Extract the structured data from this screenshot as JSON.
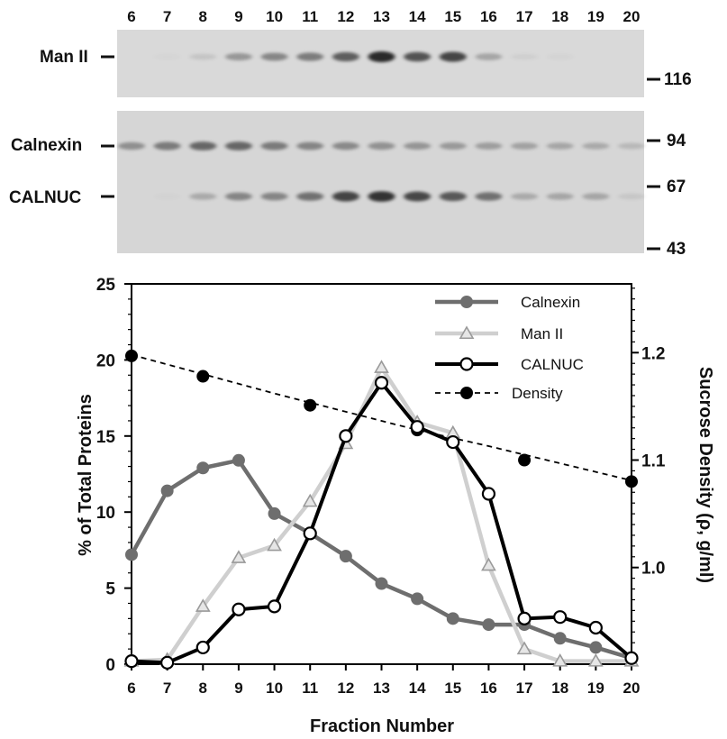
{
  "blot": {
    "lane_labels": [
      "6",
      "7",
      "8",
      "9",
      "10",
      "11",
      "12",
      "13",
      "14",
      "15",
      "16",
      "17",
      "18",
      "19",
      "20"
    ],
    "panel1": {
      "row_labels": [
        "Man II"
      ],
      "marker_labels": [
        "116"
      ],
      "bands": [
        {
          "name": "Man II",
          "intensity": [
            0.0,
            0.02,
            0.1,
            0.32,
            0.4,
            0.45,
            0.6,
            0.85,
            0.65,
            0.72,
            0.25,
            0.05,
            0.03,
            0.0,
            0.0
          ]
        }
      ]
    },
    "panel2": {
      "row_labels": [
        "Calnexin",
        "CALNUC"
      ],
      "marker_labels": [
        "94",
        "67",
        "43"
      ],
      "bands": [
        {
          "name": "Calnexin",
          "intensity": [
            0.35,
            0.45,
            0.55,
            0.55,
            0.45,
            0.4,
            0.38,
            0.34,
            0.32,
            0.3,
            0.28,
            0.26,
            0.24,
            0.22,
            0.15
          ]
        },
        {
          "name": "CALNUC",
          "intensity": [
            0.0,
            0.02,
            0.22,
            0.4,
            0.4,
            0.5,
            0.72,
            0.8,
            0.7,
            0.62,
            0.5,
            0.22,
            0.24,
            0.24,
            0.08
          ]
        }
      ]
    }
  },
  "chart_data": {
    "type": "line",
    "xlabel": "Fraction Number",
    "ylabel": "% of Total Proteins",
    "y2label": "Sucrose Density (ρ, g/ml)",
    "x": [
      6,
      7,
      8,
      9,
      10,
      11,
      12,
      13,
      14,
      15,
      16,
      17,
      18,
      19,
      20
    ],
    "xlim": [
      6,
      20
    ],
    "ylim": [
      0,
      25
    ],
    "y2lim": [
      0.91,
      1.264
    ],
    "yticks": [
      0,
      5,
      10,
      15,
      20,
      25
    ],
    "y2ticks": [
      1.0,
      1.1,
      1.2
    ],
    "y2ticklabels": [
      "1.0",
      "1.1",
      "1.2"
    ],
    "legend_position": "top-right",
    "series": [
      {
        "name": "Calnexin",
        "axis": "left",
        "marker": "filled-circle",
        "color": "#6e6e6e",
        "x": [
          6,
          7,
          8,
          9,
          10,
          11,
          12,
          13,
          14,
          15,
          16,
          17,
          18,
          19,
          20
        ],
        "values": [
          7.2,
          11.4,
          12.9,
          13.4,
          9.9,
          8.6,
          7.1,
          5.3,
          4.3,
          3.0,
          2.6,
          2.6,
          1.7,
          1.1,
          0.4
        ]
      },
      {
        "name": "Man II",
        "axis": "left",
        "marker": "triangle",
        "color": "#cfcfcf",
        "x": [
          6,
          7,
          8,
          9,
          10,
          11,
          12,
          13,
          14,
          15,
          16,
          17,
          18,
          19,
          20
        ],
        "values": [
          0.2,
          0.3,
          3.8,
          7.0,
          7.8,
          10.7,
          14.5,
          19.5,
          15.9,
          15.2,
          6.5,
          1.0,
          0.2,
          0.2,
          0.2
        ]
      },
      {
        "name": "CALNUC",
        "axis": "left",
        "marker": "open-circle",
        "color": "#000000",
        "x": [
          6,
          7,
          8,
          9,
          10,
          11,
          12,
          13,
          14,
          15,
          16,
          17,
          18,
          19,
          20
        ],
        "values": [
          0.2,
          0.1,
          1.1,
          3.6,
          3.8,
          8.6,
          15.0,
          18.5,
          15.6,
          14.6,
          11.2,
          3.0,
          3.1,
          2.4,
          0.4
        ]
      },
      {
        "name": "Density",
        "axis": "right",
        "marker": "filled-circle",
        "color": "#000000",
        "dashed": true,
        "points": [
          [
            6,
            1.197
          ],
          [
            8,
            1.178
          ],
          [
            11,
            1.151
          ],
          [
            14,
            1.128
          ],
          [
            17,
            1.1
          ],
          [
            20,
            1.08
          ]
        ],
        "fit": [
          [
            6,
            1.198
          ],
          [
            8,
            1.18
          ],
          [
            10,
            1.162
          ],
          [
            12,
            1.145
          ],
          [
            14,
            1.128
          ],
          [
            16,
            1.113
          ],
          [
            18,
            1.097
          ],
          [
            20,
            1.081
          ]
        ]
      }
    ]
  }
}
